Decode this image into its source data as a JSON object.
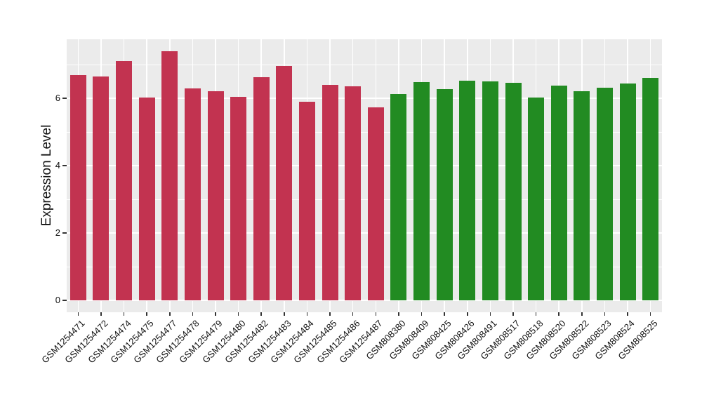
{
  "chart_data": {
    "type": "bar",
    "title": "",
    "xlabel": "",
    "ylabel": "Expression Level",
    "ylim": [
      -0.35,
      7.75
    ],
    "yticks": [
      0,
      2,
      4,
      6
    ],
    "yticks_minor": [
      1,
      3,
      5,
      7
    ],
    "grid": "on",
    "legend": "none",
    "panel_background": "#EBEBEB",
    "grid_color": "#FFFFFF",
    "axis_text_color": "#111111",
    "tick_mark_color": "#333333",
    "series": [
      {
        "color": "#C23350",
        "categories": [
          "GSM1254471",
          "GSM1254472",
          "GSM1254474",
          "GSM1254475",
          "GSM1254477",
          "GSM1254478",
          "GSM1254479",
          "GSM1254480",
          "GSM1254482",
          "GSM1254483",
          "GSM1254484",
          "GSM1254485",
          "GSM1254486",
          "GSM1254487"
        ],
        "values": [
          6.68,
          6.64,
          7.1,
          6.03,
          7.39,
          6.3,
          6.2,
          6.05,
          6.62,
          6.96,
          5.9,
          6.4,
          6.36,
          5.74
        ]
      },
      {
        "color": "#228B22",
        "categories": [
          "GSM808380",
          "GSM808409",
          "GSM808425",
          "GSM808426",
          "GSM808491",
          "GSM808517",
          "GSM808518",
          "GSM808520",
          "GSM808522",
          "GSM808523",
          "GSM808524",
          "GSM808525"
        ],
        "values": [
          6.13,
          6.47,
          6.28,
          6.53,
          6.5,
          6.45,
          6.03,
          6.37,
          6.2,
          6.31,
          6.43,
          6.6
        ]
      }
    ]
  }
}
